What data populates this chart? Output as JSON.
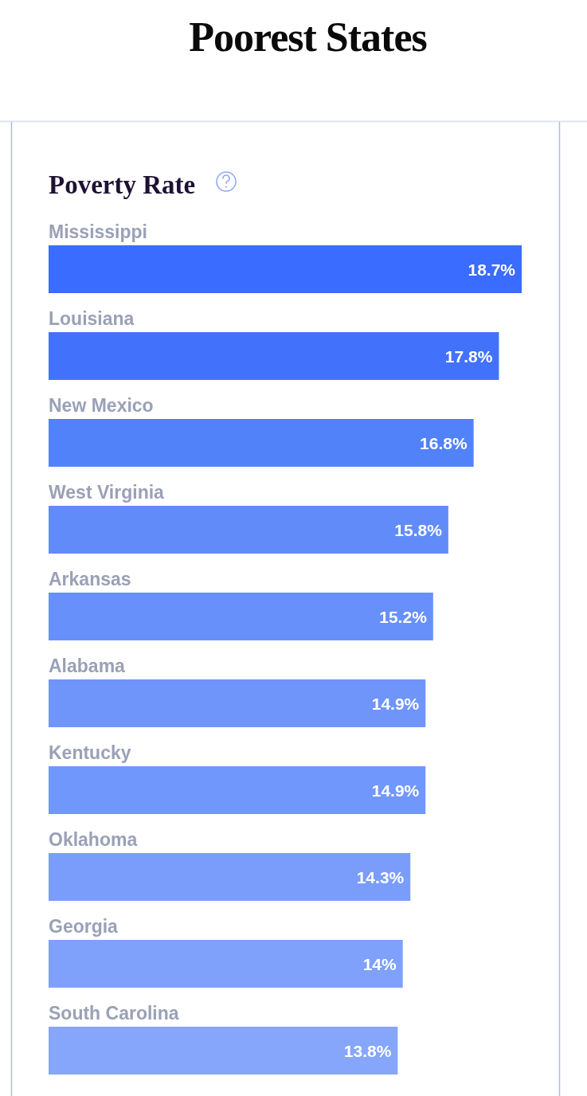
{
  "chart_data": {
    "type": "bar",
    "orientation": "horizontal",
    "title": "Poorest States",
    "subtitle": "Poverty Rate",
    "categories": [
      "Mississippi",
      "Louisiana",
      "New Mexico",
      "West Virginia",
      "Arkansas",
      "Alabama",
      "Kentucky",
      "Oklahoma",
      "Georgia",
      "South Carolina"
    ],
    "values": [
      18.7,
      17.8,
      16.8,
      15.8,
      15.2,
      14.9,
      14.9,
      14.3,
      14,
      13.8
    ],
    "colors": [
      "#3a6cff",
      "#4272fc",
      "#5282fa",
      "#628bfa",
      "#6890fa",
      "#6f95fa",
      "#7097fb",
      "#7a9dfb",
      "#7fa0fb",
      "#86a6fb"
    ],
    "value_labels": [
      "18.7%",
      "17.8%",
      "16.8%",
      "15.8%",
      "15.2%",
      "14.9%",
      "14.9%",
      "14.3%",
      "14%",
      "13.8%"
    ]
  }
}
